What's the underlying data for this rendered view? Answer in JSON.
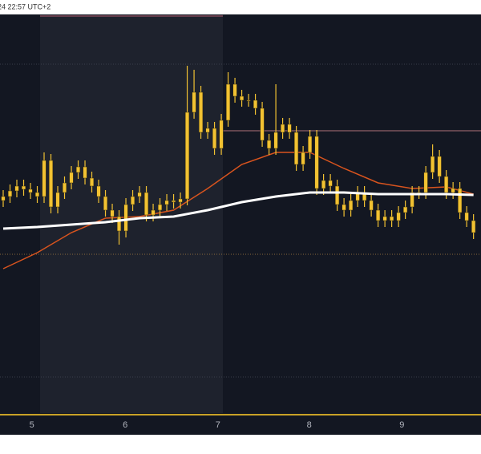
{
  "header": {
    "time": "24 22:57 UTC+2"
  },
  "chart_data": {
    "type": "candlestick",
    "xlim": [
      -0.47,
      70.1
    ],
    "xticks": [
      {
        "value": 4.2,
        "label": "5"
      },
      {
        "value": 17.9,
        "label": "6"
      },
      {
        "value": 31.5,
        "label": "7"
      },
      {
        "value": 44.9,
        "label": "8"
      },
      {
        "value": 58.5,
        "label": "9"
      }
    ],
    "ylim": [
      0,
      497
    ],
    "color": "#f2c232",
    "open": [
      265,
      270,
      277,
      283,
      279,
      275,
      270,
      315,
      257,
      275,
      287,
      300,
      307,
      293,
      283,
      270,
      253,
      245,
      227,
      260,
      270,
      275,
      247,
      253,
      260,
      265,
      263,
      267,
      375,
      400,
      350,
      355,
      330,
      365,
      410,
      395,
      390,
      390,
      380,
      340,
      330,
      350,
      360,
      350,
      310,
      325,
      345,
      280,
      290,
      283,
      260,
      253,
      265,
      275,
      265,
      253,
      240,
      245,
      240,
      250,
      257,
      275,
      275,
      300,
      320,
      295,
      275,
      280,
      250,
      240
    ],
    "high": [
      278,
      285,
      291,
      291,
      287,
      283,
      325,
      323,
      283,
      295,
      308,
      315,
      315,
      301,
      291,
      278,
      261,
      253,
      268,
      278,
      283,
      283,
      261,
      268,
      273,
      273,
      275,
      433,
      428,
      408,
      363,
      363,
      373,
      425,
      418,
      403,
      398,
      398,
      388,
      348,
      410,
      368,
      368,
      358,
      333,
      353,
      353,
      298,
      298,
      291,
      268,
      273,
      283,
      283,
      273,
      261,
      253,
      253,
      258,
      265,
      283,
      283,
      308,
      335,
      328,
      303,
      288,
      288,
      258,
      248
    ],
    "low": [
      257,
      262,
      269,
      271,
      267,
      262,
      262,
      249,
      249,
      267,
      279,
      292,
      285,
      275,
      262,
      245,
      237,
      210,
      219,
      252,
      262,
      239,
      239,
      245,
      252,
      255,
      255,
      259,
      367,
      342,
      342,
      322,
      322,
      357,
      387,
      382,
      382,
      372,
      332,
      322,
      322,
      342,
      342,
      302,
      302,
      317,
      272,
      272,
      275,
      252,
      245,
      245,
      257,
      257,
      245,
      232,
      232,
      232,
      232,
      242,
      249,
      267,
      267,
      292,
      287,
      267,
      267,
      242,
      232,
      217
    ],
    "close": [
      270,
      277,
      283,
      279,
      275,
      270,
      315,
      257,
      275,
      287,
      300,
      307,
      293,
      283,
      270,
      253,
      245,
      227,
      260,
      270,
      275,
      247,
      253,
      260,
      265,
      263,
      267,
      375,
      400,
      350,
      355,
      330,
      365,
      410,
      395,
      390,
      390,
      380,
      340,
      330,
      350,
      360,
      350,
      310,
      325,
      345,
      280,
      290,
      283,
      260,
      253,
      265,
      275,
      265,
      253,
      240,
      245,
      240,
      250,
      257,
      275,
      275,
      300,
      320,
      295,
      275,
      280,
      250,
      240,
      225
    ],
    "series": [
      {
        "color": "#ffffff",
        "x": [
          0,
          5,
          10,
          15,
          20,
          25,
          30,
          35,
          40,
          45,
          50,
          55,
          60,
          65,
          69
        ],
        "values": [
          230,
          232,
          235,
          238,
          243,
          245,
          253,
          263,
          270,
          275,
          275,
          273,
          273,
          273,
          272
        ]
      },
      {
        "color": "#d9541e",
        "x": [
          0,
          5,
          10,
          15,
          20,
          25,
          30,
          35,
          40,
          45,
          50,
          55,
          60,
          65,
          69
        ],
        "values": [
          180,
          200,
          225,
          243,
          245,
          253,
          280,
          310,
          325,
          325,
          305,
          287,
          280,
          282,
          273
        ]
      }
    ],
    "levels": [
      {
        "value": 435,
        "color": "#3a3e4a"
      },
      {
        "value": 198,
        "color": "#8a6a3a"
      },
      {
        "value": 45,
        "color": "#3a3e4a"
      },
      {
        "value": 352,
        "color": "#b0707a"
      },
      {
        "value": 495,
        "color": "#b05a6a"
      }
    ]
  }
}
